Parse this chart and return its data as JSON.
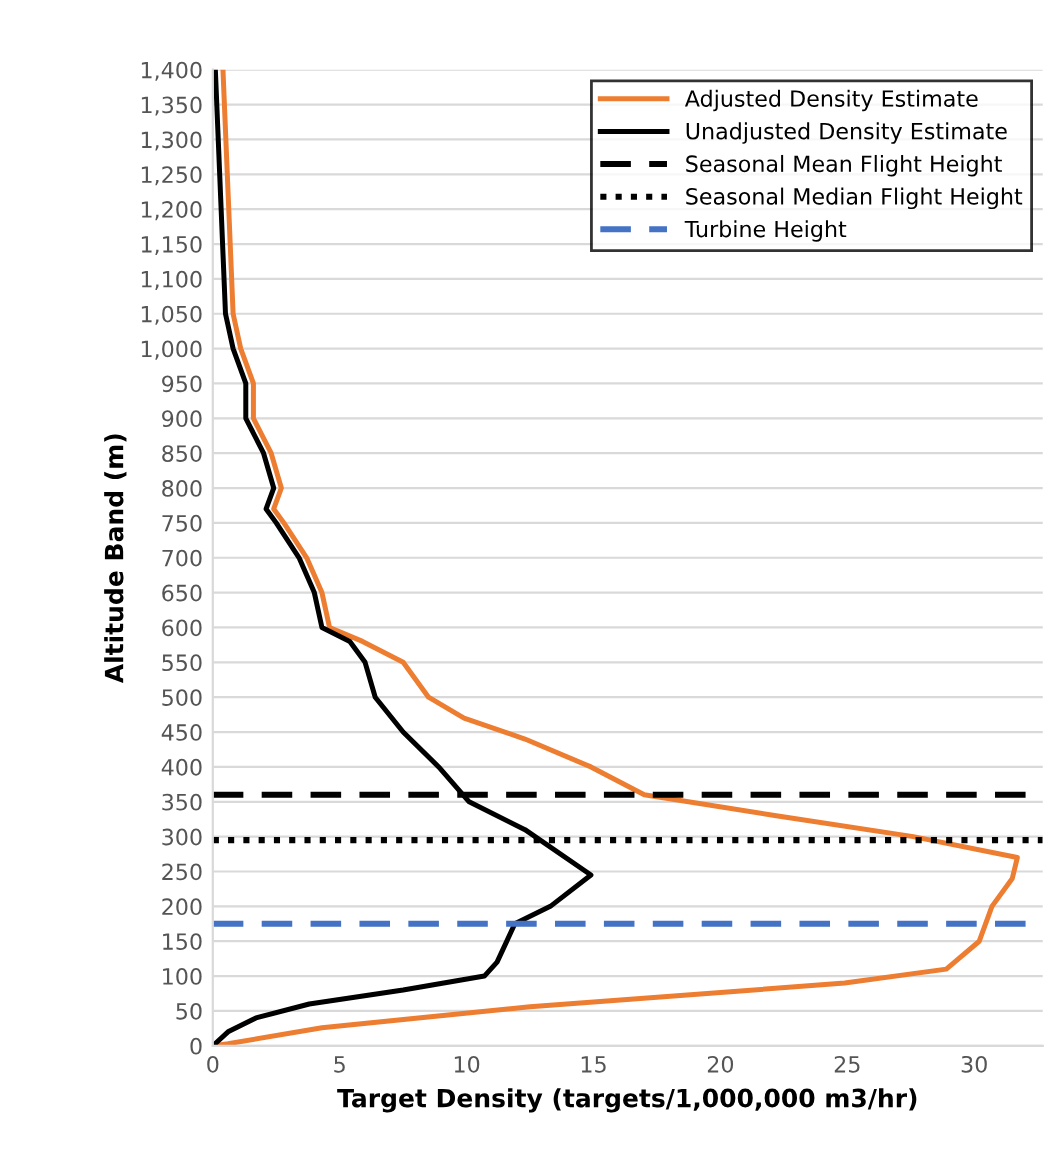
{
  "chart_data": {
    "type": "line",
    "xlabel": "Target Density (targets/1,000,000 m3/hr)",
    "ylabel": "Altitude Band (m)",
    "series": [
      {
        "name": "Adjusted Density Estimate",
        "color": "#ed7d31",
        "x": [
          0.4,
          0.8,
          1.1,
          1.6,
          1.6,
          2.3,
          2.7,
          2.4,
          2.8,
          3.7,
          4.3,
          4.6,
          5.9,
          7.5,
          8.5,
          9.9,
          12.3,
          14.9,
          17.0,
          22.2,
          27.6,
          31.7,
          31.5,
          30.7,
          30.2,
          28.9,
          24.9,
          12.5,
          4.3,
          0.6,
          0
        ],
        "values": [
          1400,
          1050,
          1000,
          950,
          900,
          850,
          800,
          770,
          750,
          700,
          650,
          600,
          580,
          550,
          500,
          470,
          440,
          400,
          360,
          330,
          300,
          270,
          240,
          200,
          150,
          110,
          90,
          56,
          26,
          3,
          0
        ]
      },
      {
        "name": "Unadjusted Density Estimate",
        "color": "#000000",
        "x": [
          0.1,
          0.5,
          0.8,
          1.3,
          1.3,
          2.0,
          2.4,
          2.1,
          2.5,
          3.4,
          4.0,
          4.3,
          5.4,
          6.0,
          6.4,
          7.5,
          8.9,
          10.1,
          12.3,
          14.9,
          13.3,
          11.9,
          11.2,
          10.7,
          7.5,
          3.8,
          1.7,
          0.6,
          0
        ],
        "values": [
          1400,
          1050,
          1000,
          950,
          900,
          850,
          800,
          770,
          750,
          700,
          650,
          600,
          580,
          550,
          500,
          450,
          400,
          350,
          310,
          245,
          200,
          175,
          120,
          100,
          80,
          60,
          40,
          20,
          0
        ]
      }
    ],
    "ref_lines": [
      {
        "axis": "y",
        "value": 360,
        "label": "Seasonal Mean Flight Height",
        "color": "#000000",
        "line_style": "dashed"
      },
      {
        "axis": "y",
        "value": 295,
        "label": "Seasonal Median Flight Height",
        "color": "#000000",
        "line_style": "dotted"
      },
      {
        "axis": "y",
        "value": 175,
        "label": "Turbine Height",
        "color": "#4472c4",
        "line_style": "dashed"
      }
    ],
    "xlim": [
      0,
      32.7
    ],
    "xticks": [
      0,
      5,
      10,
      15,
      20,
      25,
      30
    ],
    "ylim": [
      0,
      1400
    ],
    "yticks": [
      0,
      50,
      100,
      150,
      200,
      250,
      300,
      350,
      400,
      450,
      500,
      550,
      600,
      650,
      700,
      750,
      800,
      850,
      900,
      950,
      {
        "value": 1000,
        "label": "1,000"
      },
      {
        "value": 1050,
        "label": "1,050"
      },
      {
        "value": 1100,
        "label": "1,100"
      },
      {
        "value": 1150,
        "label": "1,150"
      },
      {
        "value": 1200,
        "label": "1,200"
      },
      {
        "value": 1250,
        "label": "1,250"
      },
      {
        "value": 1300,
        "label": "1,300"
      },
      {
        "value": 1350,
        "label": "1,350"
      },
      {
        "value": 1400,
        "label": "1,400"
      }
    ],
    "grid": "y",
    "legend": "top right",
    "line_style": "solid",
    "marker": "none"
  }
}
